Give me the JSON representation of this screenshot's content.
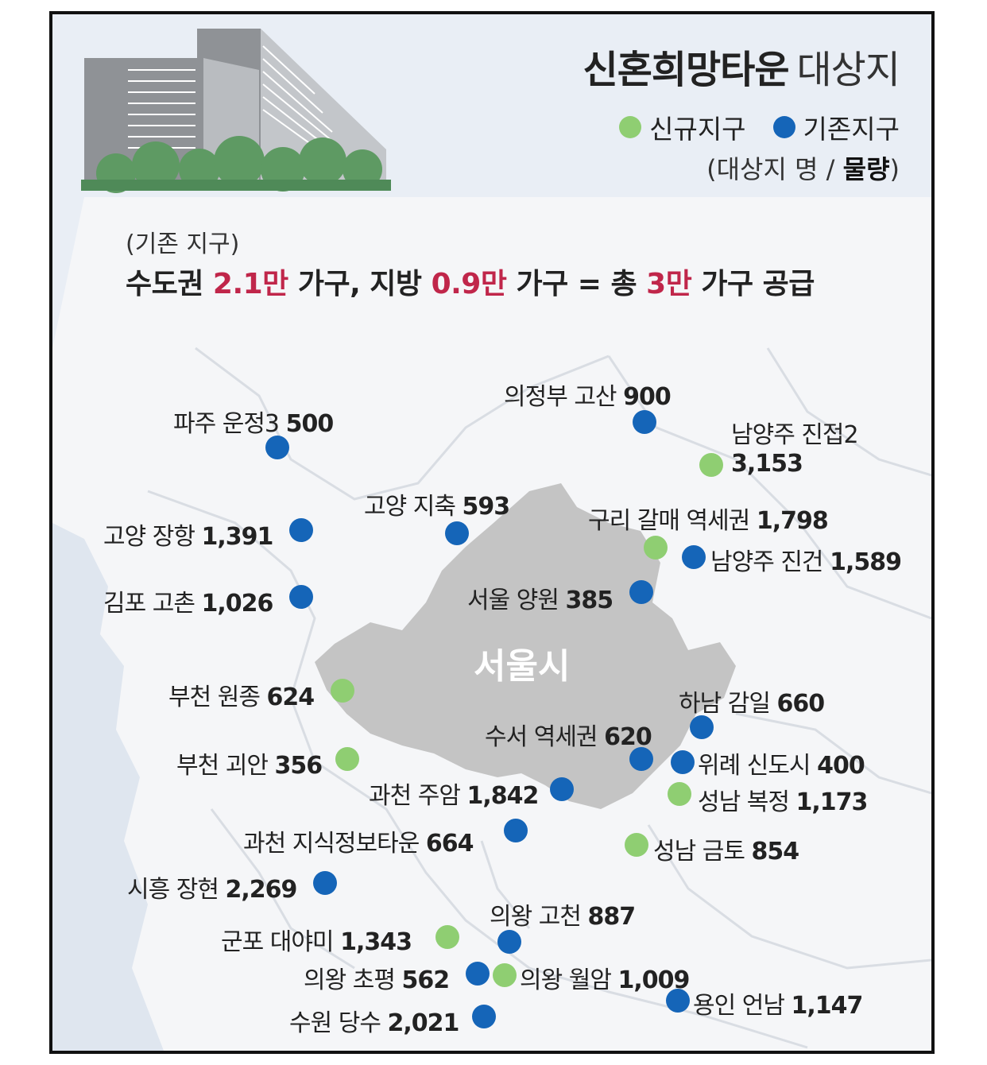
{
  "title": {
    "main": "신혼희망타운",
    "sub": "대상지"
  },
  "legend": {
    "new_label": "신규지구",
    "existing_label": "기존지구",
    "note_prefix": "(대상지 명 / ",
    "note_bold": "물량",
    "note_suffix": ")"
  },
  "summary": {
    "note": "(기존 지구)",
    "p1": "수도권 ",
    "v1": "2.1만",
    "p2": " 가구, 지방 ",
    "v2": "0.9만",
    "p3": " 가구 =  총 ",
    "v3": "3만",
    "p4": " 가구 공급"
  },
  "city_label": "서울시",
  "colors": {
    "new": "#8fce72",
    "existing": "#1565b8",
    "highlight": "#c0264a",
    "seoul": "#c4c4c4"
  },
  "sites": [
    {
      "name": "파주 운정3",
      "count": "500",
      "type": "existing"
    },
    {
      "name": "의정부 고산",
      "count": "900",
      "type": "existing"
    },
    {
      "name": "남양주 진접2",
      "count": "3,153",
      "type": "new"
    },
    {
      "name": "고양 지축",
      "count": "593",
      "type": "existing"
    },
    {
      "name": "고양 장항",
      "count": "1,391",
      "type": "existing"
    },
    {
      "name": "구리 갈매 역세권",
      "count": "1,798",
      "type": "new"
    },
    {
      "name": "남양주 진건",
      "count": "1,589",
      "type": "existing"
    },
    {
      "name": "김포 고촌",
      "count": "1,026",
      "type": "existing"
    },
    {
      "name": "서울 양원",
      "count": "385",
      "type": "existing"
    },
    {
      "name": "부천 원종",
      "count": "624",
      "type": "new"
    },
    {
      "name": "하남 감일",
      "count": "660",
      "type": "existing"
    },
    {
      "name": "수서 역세권",
      "count": "620",
      "type": "existing"
    },
    {
      "name": "부천 괴안",
      "count": "356",
      "type": "new"
    },
    {
      "name": "위례 신도시",
      "count": "400",
      "type": "existing"
    },
    {
      "name": "과천 주암",
      "count": "1,842",
      "type": "existing"
    },
    {
      "name": "성남 복정",
      "count": "1,173",
      "type": "new"
    },
    {
      "name": "과천 지식정보타운",
      "count": "664",
      "type": "existing"
    },
    {
      "name": "성남 금토",
      "count": "854",
      "type": "new"
    },
    {
      "name": "시흥 장현",
      "count": "2,269",
      "type": "existing"
    },
    {
      "name": "의왕 고천",
      "count": "887",
      "type": "existing"
    },
    {
      "name": "군포 대야미",
      "count": "1,343",
      "type": "new"
    },
    {
      "name": "의왕 초평",
      "count": "562",
      "type": "existing"
    },
    {
      "name": "의왕 월암",
      "count": "1,009",
      "type": "new"
    },
    {
      "name": "용인 언남",
      "count": "1,147",
      "type": "existing"
    },
    {
      "name": "수원 당수",
      "count": "2,021",
      "type": "existing"
    }
  ]
}
